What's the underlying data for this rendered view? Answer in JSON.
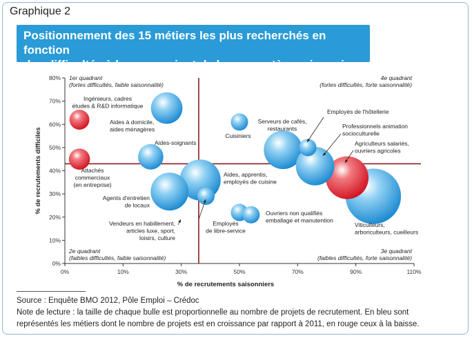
{
  "figure_label": "Graphique 2",
  "title_line1": "Positionnement des 15 métiers les plus recherchés en fonction",
  "title_line2": "des difficultés à les pourvoir et de leur caractère saisonnier",
  "source": "Source : Enquête BMO 2012, Pôle Emploi – Crédoc",
  "note_line1": "Note de lecture : la taille de chaque bulle est proportionnelle au nombre de projets de recrutement. En bleu sont",
  "note_line2": "représentés les métiers dont le nombre de projets est en croissance par rapport à 2011, en rouge ceux à la baisse.",
  "colors": {
    "accent": "#2a9bd6",
    "increase": "#2b9be0",
    "decrease": "#e0202c",
    "crosshair": "#8b1a1a"
  },
  "chart_data": {
    "type": "scatter",
    "xlabel": "% de recrutements saisonniers",
    "ylabel": "% de recrutements difficiles",
    "xlim": [
      0,
      110
    ],
    "ylim": [
      0,
      80
    ],
    "x_ticks": [
      "0%",
      "10%",
      "30%",
      "50%",
      "70%",
      "90%",
      "110%"
    ],
    "x_tick_values": [
      0,
      10,
      30,
      50,
      70,
      90,
      110
    ],
    "y_ticks": [
      "0%",
      "10%",
      "20%",
      "30%",
      "40%",
      "50%",
      "60%",
      "70%",
      "80%"
    ],
    "y_tick_values": [
      0,
      10,
      20,
      30,
      40,
      50,
      60,
      70,
      80
    ],
    "crosshair": {
      "x": 36,
      "y": 43
    },
    "quadrants": [
      {
        "line1": "1er quadrant",
        "line2": "(fortes difficultés, faible saisonnalité)"
      },
      {
        "line1": "4e quadrant",
        "line2": "(fortes difficultés, forte saisonnalité)"
      },
      {
        "line1": "2e quadrant",
        "line2": "(faibles difficultés, faible saisonnalité)"
      },
      {
        "line1": "3e quadrant",
        "line2": "(faibles difficultés, forte saisonnalité)"
      }
    ],
    "points": [
      {
        "label": "Ingénieurs, cadres études & R&D informatique",
        "x": 25,
        "y": 67,
        "size": 20,
        "trend": "increase"
      },
      {
        "label": "Aides à domicile, aides ménagères",
        "x": 2.5,
        "y": 62,
        "size": 8,
        "trend": "decrease"
      },
      {
        "label": "Aides-soignants",
        "x": 19.5,
        "y": 46,
        "size": 13,
        "trend": "increase"
      },
      {
        "label": "Attachés commerciaux (en entreprise)",
        "x": 2.5,
        "y": 45,
        "size": 9,
        "trend": "decrease"
      },
      {
        "label": "Agents d'entretien de locaux",
        "x": 26,
        "y": 31,
        "size": 29,
        "trend": "increase"
      },
      {
        "label": "Aides, apprentis, employés de cuisine",
        "x": 36.5,
        "y": 36,
        "size": 34,
        "trend": "increase"
      },
      {
        "label": "Vendeurs en habillement, articles luxe, sport, loisirs, culture",
        "x": 38.5,
        "y": 29,
        "size": 6,
        "trend": "increase"
      },
      {
        "label": "Cuisiniers",
        "x": 50,
        "y": 61,
        "size": 6,
        "trend": "increase"
      },
      {
        "label": "Employés de libre-service",
        "x": 50,
        "y": 22,
        "size": 6,
        "trend": "increase"
      },
      {
        "label": "Ouvriers non qualifiés emballage et manutention",
        "x": 54,
        "y": 21,
        "size": 6,
        "trend": "increase"
      },
      {
        "label": "Serveurs de cafés, restaurants",
        "x": 65,
        "y": 49,
        "size": 30,
        "trend": "increase"
      },
      {
        "label": "Employés de l'hôtellerie",
        "x": 73.5,
        "y": 50,
        "size": 6,
        "trend": "increase"
      },
      {
        "label": "Professionnels animation socioculturelle",
        "x": 76,
        "y": 42,
        "size": 30,
        "trend": "increase"
      },
      {
        "label": "Agriculteurs salariés, ouvriers agricoles",
        "x": 87,
        "y": 37,
        "size": 37,
        "trend": "decrease"
      },
      {
        "label": "Viticulteurs, arboriculteurs, cueilleurs",
        "x": 96,
        "y": 29,
        "size": 62,
        "trend": "increase"
      }
    ]
  }
}
